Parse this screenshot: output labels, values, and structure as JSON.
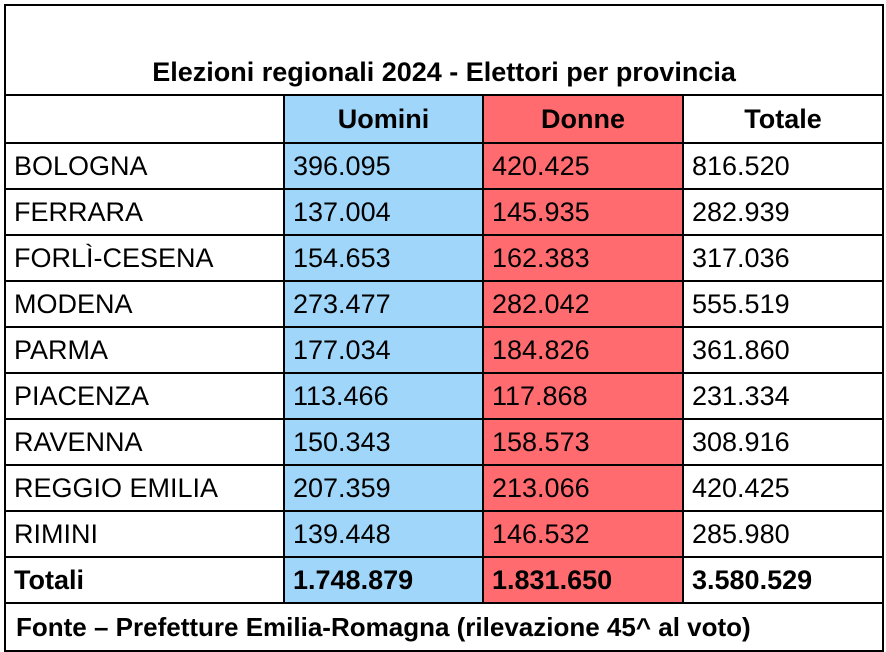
{
  "table": {
    "title": "Elezioni regionali 2024 - Elettori per provincia",
    "headers": {
      "province": "",
      "men": "Uomini",
      "women": "Donne",
      "total": "Totale"
    },
    "rows": [
      {
        "province": "BOLOGNA",
        "men": "396.095",
        "women": "420.425",
        "total": "816.520"
      },
      {
        "province": "FERRARA",
        "men": "137.004",
        "women": "145.935",
        "total": "282.939"
      },
      {
        "province": "FORLÌ-CESENA",
        "men": "154.653",
        "women": "162.383",
        "total": "317.036"
      },
      {
        "province": "MODENA",
        "men": "273.477",
        "women": "282.042",
        "total": "555.519"
      },
      {
        "province": "PARMA",
        "men": "177.034",
        "women": "184.826",
        "total": "361.860"
      },
      {
        "province": "PIACENZA",
        "men": "113.466",
        "women": "117.868",
        "total": "231.334"
      },
      {
        "province": "RAVENNA",
        "men": "150.343",
        "women": "158.573",
        "total": "308.916"
      },
      {
        "province": "REGGIO EMILIA",
        "men": "207.359",
        "women": "213.066",
        "total": "420.425"
      },
      {
        "province": "RIMINI",
        "men": "139.448",
        "women": "146.532",
        "total": "285.980"
      }
    ],
    "totals": {
      "label": "Totali",
      "men": "1.748.879",
      "women": "1.831.650",
      "total": "3.580.529"
    },
    "source": "Fonte – Prefetture Emilia-Romagna (rilevazione 45^ al voto)"
  },
  "colors": {
    "men_column": "#9fd6f9",
    "women_column": "#ff6b6f",
    "border": "#000000"
  }
}
